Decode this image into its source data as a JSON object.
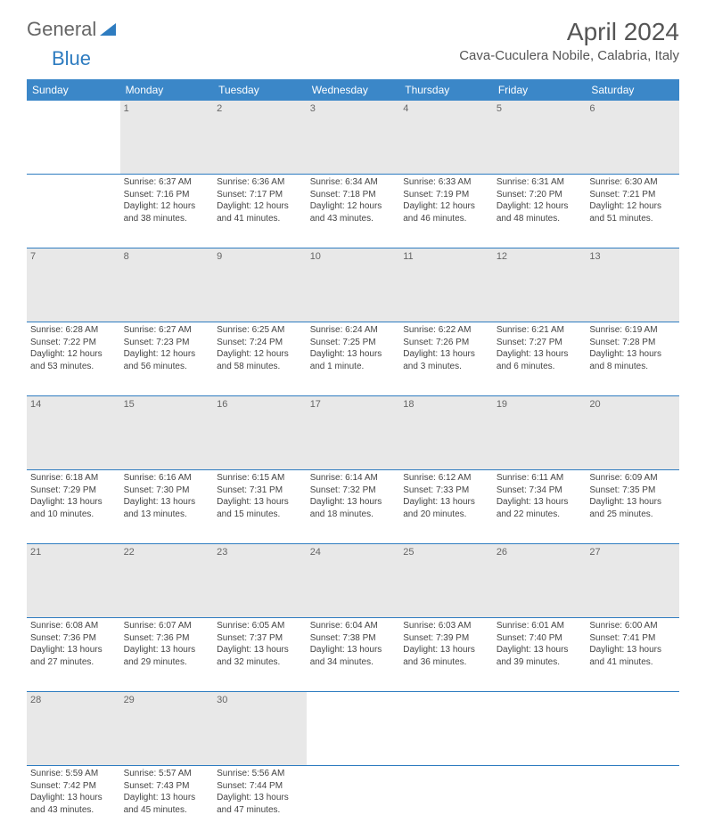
{
  "logo": {
    "part1": "General",
    "part2": "Blue"
  },
  "title": "April 2024",
  "location": "Cava-Cuculera Nobile, Calabria, Italy",
  "colors": {
    "header_bg": "#3b87c8",
    "header_text": "#ffffff",
    "daynum_bg": "#e8e8e8",
    "border": "#2e7cc0",
    "text": "#444444",
    "logo_gray": "#666666",
    "logo_blue": "#2e7cc0"
  },
  "day_headers": [
    "Sunday",
    "Monday",
    "Tuesday",
    "Wednesday",
    "Thursday",
    "Friday",
    "Saturday"
  ],
  "weeks": [
    [
      null,
      {
        "n": "1",
        "sr": "6:37 AM",
        "ss": "7:16 PM",
        "dl": "12 hours and 38 minutes."
      },
      {
        "n": "2",
        "sr": "6:36 AM",
        "ss": "7:17 PM",
        "dl": "12 hours and 41 minutes."
      },
      {
        "n": "3",
        "sr": "6:34 AM",
        "ss": "7:18 PM",
        "dl": "12 hours and 43 minutes."
      },
      {
        "n": "4",
        "sr": "6:33 AM",
        "ss": "7:19 PM",
        "dl": "12 hours and 46 minutes."
      },
      {
        "n": "5",
        "sr": "6:31 AM",
        "ss": "7:20 PM",
        "dl": "12 hours and 48 minutes."
      },
      {
        "n": "6",
        "sr": "6:30 AM",
        "ss": "7:21 PM",
        "dl": "12 hours and 51 minutes."
      }
    ],
    [
      {
        "n": "7",
        "sr": "6:28 AM",
        "ss": "7:22 PM",
        "dl": "12 hours and 53 minutes."
      },
      {
        "n": "8",
        "sr": "6:27 AM",
        "ss": "7:23 PM",
        "dl": "12 hours and 56 minutes."
      },
      {
        "n": "9",
        "sr": "6:25 AM",
        "ss": "7:24 PM",
        "dl": "12 hours and 58 minutes."
      },
      {
        "n": "10",
        "sr": "6:24 AM",
        "ss": "7:25 PM",
        "dl": "13 hours and 1 minute."
      },
      {
        "n": "11",
        "sr": "6:22 AM",
        "ss": "7:26 PM",
        "dl": "13 hours and 3 minutes."
      },
      {
        "n": "12",
        "sr": "6:21 AM",
        "ss": "7:27 PM",
        "dl": "13 hours and 6 minutes."
      },
      {
        "n": "13",
        "sr": "6:19 AM",
        "ss": "7:28 PM",
        "dl": "13 hours and 8 minutes."
      }
    ],
    [
      {
        "n": "14",
        "sr": "6:18 AM",
        "ss": "7:29 PM",
        "dl": "13 hours and 10 minutes."
      },
      {
        "n": "15",
        "sr": "6:16 AM",
        "ss": "7:30 PM",
        "dl": "13 hours and 13 minutes."
      },
      {
        "n": "16",
        "sr": "6:15 AM",
        "ss": "7:31 PM",
        "dl": "13 hours and 15 minutes."
      },
      {
        "n": "17",
        "sr": "6:14 AM",
        "ss": "7:32 PM",
        "dl": "13 hours and 18 minutes."
      },
      {
        "n": "18",
        "sr": "6:12 AM",
        "ss": "7:33 PM",
        "dl": "13 hours and 20 minutes."
      },
      {
        "n": "19",
        "sr": "6:11 AM",
        "ss": "7:34 PM",
        "dl": "13 hours and 22 minutes."
      },
      {
        "n": "20",
        "sr": "6:09 AM",
        "ss": "7:35 PM",
        "dl": "13 hours and 25 minutes."
      }
    ],
    [
      {
        "n": "21",
        "sr": "6:08 AM",
        "ss": "7:36 PM",
        "dl": "13 hours and 27 minutes."
      },
      {
        "n": "22",
        "sr": "6:07 AM",
        "ss": "7:36 PM",
        "dl": "13 hours and 29 minutes."
      },
      {
        "n": "23",
        "sr": "6:05 AM",
        "ss": "7:37 PM",
        "dl": "13 hours and 32 minutes."
      },
      {
        "n": "24",
        "sr": "6:04 AM",
        "ss": "7:38 PM",
        "dl": "13 hours and 34 minutes."
      },
      {
        "n": "25",
        "sr": "6:03 AM",
        "ss": "7:39 PM",
        "dl": "13 hours and 36 minutes."
      },
      {
        "n": "26",
        "sr": "6:01 AM",
        "ss": "7:40 PM",
        "dl": "13 hours and 39 minutes."
      },
      {
        "n": "27",
        "sr": "6:00 AM",
        "ss": "7:41 PM",
        "dl": "13 hours and 41 minutes."
      }
    ],
    [
      {
        "n": "28",
        "sr": "5:59 AM",
        "ss": "7:42 PM",
        "dl": "13 hours and 43 minutes."
      },
      {
        "n": "29",
        "sr": "5:57 AM",
        "ss": "7:43 PM",
        "dl": "13 hours and 45 minutes."
      },
      {
        "n": "30",
        "sr": "5:56 AM",
        "ss": "7:44 PM",
        "dl": "13 hours and 47 minutes."
      },
      null,
      null,
      null,
      null
    ]
  ],
  "labels": {
    "sunrise": "Sunrise:",
    "sunset": "Sunset:",
    "daylight": "Daylight:"
  }
}
